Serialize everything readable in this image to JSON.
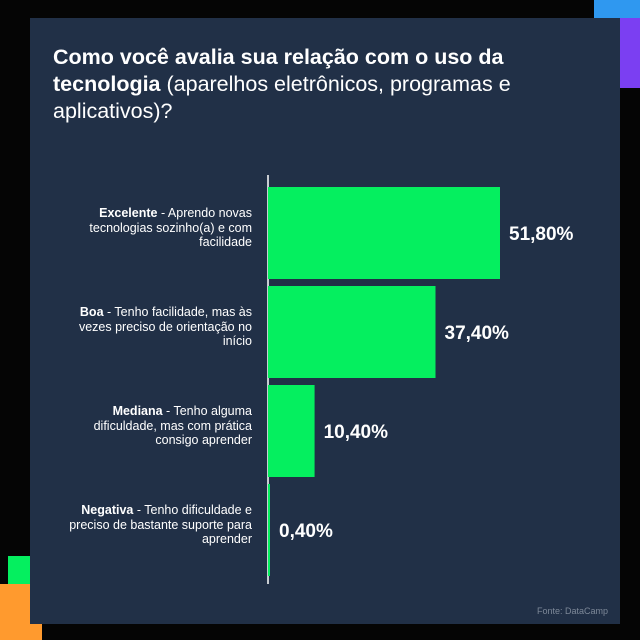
{
  "title": {
    "bold": "Como você avalia sua relação com o uso da tecnologia",
    "normal": " (aparelhos eletrônicos, programas e aplicativos)?"
  },
  "source": "Fonte: DataCamp",
  "colors": {
    "background": "#050505",
    "card": "#213047",
    "bar": "#05ef5f",
    "text": "#ffffff",
    "accent_blue": "#2f98f0",
    "accent_purple": "#7b3ff2",
    "accent_orange": "#ff9a2e",
    "accent_green": "#05ef5f"
  },
  "categories": [
    {
      "strong": "Excelente",
      "rest": " - Aprendo novas tecnologias sozinho(a) e com facilidade"
    },
    {
      "strong": "Boa",
      "rest": " - Tenho facilidade, mas às vezes preciso de orientação no início"
    },
    {
      "strong": "Mediana",
      "rest": " - Tenho alguma dificuldade, mas com prática consigo aprender"
    },
    {
      "strong": "Negativa",
      "rest": " - Tenho dificuldade e preciso de bastante suporte para aprender"
    }
  ],
  "chart_data": {
    "type": "bar",
    "orientation": "horizontal",
    "title": "Como você avalia sua relação com o uso da tecnologia (aparelhos eletrônicos, programas e aplicativos)?",
    "categories": [
      "Excelente",
      "Boa",
      "Mediana",
      "Negativa"
    ],
    "values": [
      51.8,
      37.4,
      10.4,
      0.4
    ],
    "value_labels": [
      "51,80%",
      "37,40%",
      "10,40%",
      "0,40%"
    ],
    "xlim": [
      0,
      51.8
    ],
    "grid": false,
    "legend": "none"
  }
}
